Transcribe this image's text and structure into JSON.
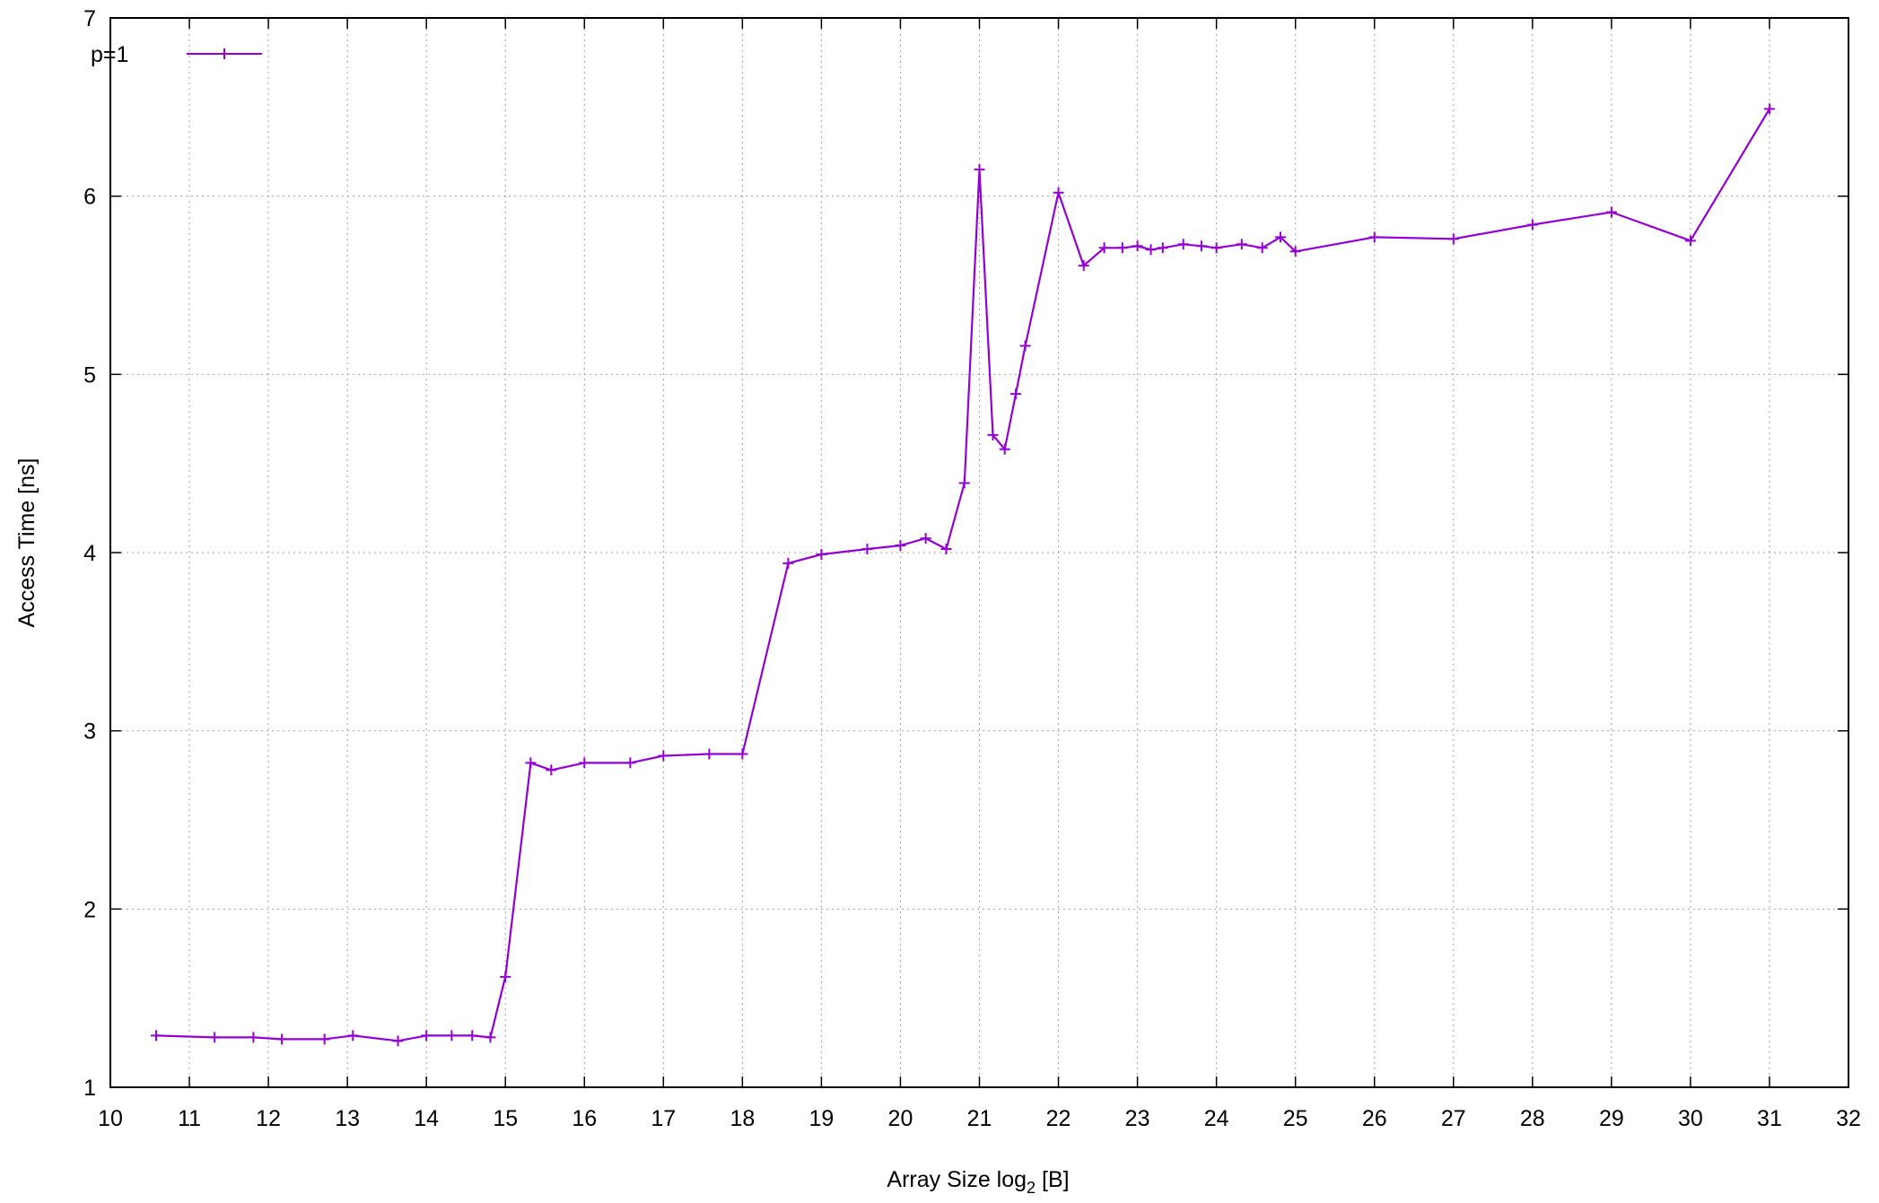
{
  "chart_data": {
    "type": "line",
    "xlabel_main": "Array Size log",
    "xlabel_sub": "2",
    "xlabel_tail": " [B]",
    "ylabel": "Access Time [ns]",
    "xlim": [
      10,
      32
    ],
    "ylim": [
      1,
      7
    ],
    "xticks": [
      10,
      11,
      12,
      13,
      14,
      15,
      16,
      17,
      18,
      19,
      20,
      21,
      22,
      23,
      24,
      25,
      26,
      27,
      28,
      29,
      30,
      31,
      32
    ],
    "yticks": [
      1,
      2,
      3,
      4,
      5,
      6,
      7
    ],
    "grid": true,
    "legend_position": "top-left",
    "series": [
      {
        "name": "p=1",
        "color": "#9400d3",
        "marker": "plus",
        "x": [
          10.58,
          11.32,
          11.81,
          12.17,
          12.71,
          13.07,
          13.64,
          14.0,
          14.32,
          14.58,
          14.81,
          15.0,
          15.32,
          15.58,
          16.0,
          16.58,
          17.0,
          17.58,
          18.0,
          18.58,
          19.0,
          19.58,
          20.0,
          20.32,
          20.58,
          20.81,
          21.0,
          21.17,
          21.32,
          21.46,
          21.58,
          22.0,
          22.32,
          22.58,
          22.81,
          23.0,
          23.17,
          23.32,
          23.58,
          23.81,
          24.0,
          24.32,
          24.58,
          24.81,
          25.0,
          26.0,
          27.0,
          28.0,
          29.0,
          30.0,
          31.0
        ],
        "y": [
          1.29,
          1.28,
          1.28,
          1.27,
          1.27,
          1.29,
          1.26,
          1.29,
          1.29,
          1.29,
          1.28,
          1.62,
          2.82,
          2.78,
          2.82,
          2.82,
          2.86,
          2.87,
          2.87,
          3.94,
          3.99,
          4.02,
          4.04,
          4.08,
          4.02,
          4.39,
          6.15,
          4.66,
          4.58,
          4.89,
          5.16,
          6.02,
          5.61,
          5.71,
          5.71,
          5.72,
          5.7,
          5.71,
          5.73,
          5.72,
          5.71,
          5.73,
          5.71,
          5.77,
          5.69,
          5.77,
          5.76,
          5.84,
          5.91,
          5.75,
          6.49
        ]
      }
    ]
  }
}
